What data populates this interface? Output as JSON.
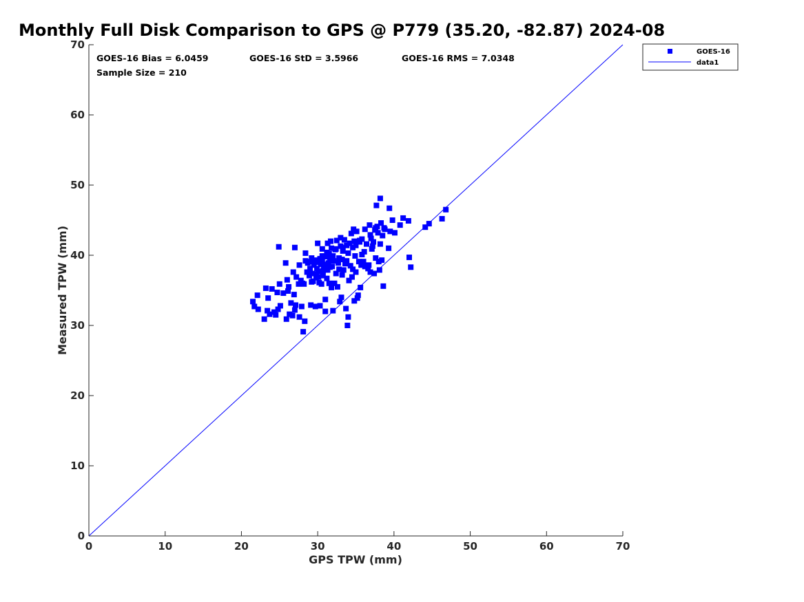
{
  "chart_data": {
    "type": "scatter",
    "title": "Monthly Full Disk Comparison to GPS @ P779 (35.20, -82.87) 2024-08",
    "xlabel": "GPS TPW (mm)",
    "ylabel": "Measured TPW (mm)",
    "xlim": [
      0,
      70
    ],
    "ylim": [
      0,
      70
    ],
    "x_ticks": [
      "0",
      "10",
      "20",
      "30",
      "40",
      "50",
      "60",
      "70"
    ],
    "y_ticks": [
      "0",
      "10",
      "20",
      "30",
      "40",
      "50",
      "60",
      "70"
    ],
    "grid": false,
    "legend_position": "top-right",
    "stats": {
      "bias": "GOES-16 Bias = 6.0459",
      "std": "GOES-16 StD = 3.5966",
      "rms": "GOES-16 RMS = 7.0348",
      "sample": "Sample Size = 210"
    },
    "series": [
      {
        "name": "GOES-16",
        "kind": "scatter",
        "marker": "square",
        "color": "#0000ff",
        "points": [
          [
            21.5,
            33.4
          ],
          [
            21.7,
            32.7
          ],
          [
            22.2,
            32.3
          ],
          [
            22.1,
            34.3
          ],
          [
            23.0,
            30.9
          ],
          [
            23.2,
            35.3
          ],
          [
            23.4,
            32.1
          ],
          [
            23.5,
            33.9
          ],
          [
            23.7,
            31.6
          ],
          [
            24.0,
            35.2
          ],
          [
            24.3,
            31.9
          ],
          [
            24.5,
            31.5
          ],
          [
            24.7,
            34.7
          ],
          [
            24.8,
            32.3
          ],
          [
            25.0,
            35.9
          ],
          [
            25.1,
            32.8
          ],
          [
            24.9,
            41.2
          ],
          [
            25.5,
            34.6
          ],
          [
            25.8,
            38.9
          ],
          [
            25.9,
            30.9
          ],
          [
            26.0,
            36.5
          ],
          [
            26.1,
            34.9
          ],
          [
            26.2,
            35.5
          ],
          [
            26.3,
            31.6
          ],
          [
            26.5,
            33.2
          ],
          [
            26.7,
            31.4
          ],
          [
            26.8,
            37.6
          ],
          [
            26.9,
            34.4
          ],
          [
            27.0,
            32.2
          ],
          [
            27.1,
            32.9
          ],
          [
            27.2,
            36.9
          ],
          [
            27.0,
            41.1
          ],
          [
            27.5,
            35.9
          ],
          [
            27.6,
            31.2
          ],
          [
            27.8,
            36.4
          ],
          [
            27.9,
            32.7
          ],
          [
            28.1,
            29.1
          ],
          [
            28.2,
            35.9
          ],
          [
            28.3,
            30.6
          ],
          [
            28.4,
            39.2
          ],
          [
            28.4,
            40.3
          ],
          [
            28.6,
            37.6
          ],
          [
            28.7,
            38.9
          ],
          [
            28.9,
            39.1
          ],
          [
            29.0,
            38.1
          ],
          [
            29.1,
            32.9
          ],
          [
            29.2,
            39.6
          ],
          [
            29.3,
            37.4
          ],
          [
            29.4,
            36.3
          ],
          [
            29.5,
            38.6
          ],
          [
            29.6,
            39.3
          ],
          [
            29.7,
            32.7
          ],
          [
            29.8,
            36.8
          ],
          [
            29.9,
            38.1
          ],
          [
            30.0,
            41.7
          ],
          [
            30.1,
            37.7
          ],
          [
            30.2,
            36.1
          ],
          [
            30.3,
            32.8
          ],
          [
            30.4,
            38.7
          ],
          [
            30.5,
            35.9
          ],
          [
            30.6,
            39.4
          ],
          [
            30.6,
            40.9
          ],
          [
            30.7,
            37.1
          ],
          [
            30.8,
            38.2
          ],
          [
            30.9,
            39.8
          ],
          [
            31.0,
            33.7
          ],
          [
            31.0,
            32.0
          ],
          [
            31.1,
            38.6
          ],
          [
            31.2,
            40.4
          ],
          [
            31.3,
            37.9
          ],
          [
            31.3,
            41.7
          ],
          [
            31.4,
            38.9
          ],
          [
            31.5,
            36.0
          ],
          [
            31.6,
            39.5
          ],
          [
            31.7,
            42.0
          ],
          [
            31.8,
            35.4
          ],
          [
            31.9,
            38.4
          ],
          [
            32.0,
            32.1
          ],
          [
            32.1,
            39.2
          ],
          [
            32.2,
            36.0
          ],
          [
            32.3,
            40.8
          ],
          [
            32.4,
            37.4
          ],
          [
            32.5,
            42.1
          ],
          [
            32.6,
            35.5
          ],
          [
            32.7,
            38.9
          ],
          [
            32.8,
            39.6
          ],
          [
            32.9,
            33.4
          ],
          [
            33.0,
            42.5
          ],
          [
            33.1,
            34.0
          ],
          [
            33.2,
            39.4
          ],
          [
            33.3,
            41.1
          ],
          [
            33.4,
            37.9
          ],
          [
            33.5,
            42.2
          ],
          [
            33.6,
            38.8
          ],
          [
            33.7,
            32.4
          ],
          [
            33.8,
            41.4
          ],
          [
            33.9,
            30.0
          ],
          [
            34.0,
            31.2
          ],
          [
            34.1,
            36.4
          ],
          [
            34.2,
            41.7
          ],
          [
            34.3,
            38.5
          ],
          [
            34.4,
            43.1
          ],
          [
            34.5,
            36.9
          ],
          [
            34.6,
            41.1
          ],
          [
            34.7,
            43.7
          ],
          [
            34.8,
            33.5
          ],
          [
            34.9,
            39.9
          ],
          [
            35.0,
            41.4
          ],
          [
            35.1,
            43.4
          ],
          [
            35.2,
            33.9
          ],
          [
            35.3,
            34.3
          ],
          [
            35.4,
            39.1
          ],
          [
            35.5,
            41.9
          ],
          [
            35.6,
            35.4
          ],
          [
            35.7,
            38.6
          ],
          [
            35.8,
            42.3
          ],
          [
            36.0,
            39.1
          ],
          [
            36.2,
            43.7
          ],
          [
            36.4,
            41.6
          ],
          [
            36.6,
            38.1
          ],
          [
            36.8,
            44.3
          ],
          [
            36.9,
            37.6
          ],
          [
            37.0,
            42.4
          ],
          [
            37.1,
            40.9
          ],
          [
            37.2,
            41.3
          ],
          [
            37.4,
            37.4
          ],
          [
            37.5,
            43.6
          ],
          [
            37.6,
            39.6
          ],
          [
            37.7,
            47.1
          ],
          [
            37.8,
            44.1
          ],
          [
            37.9,
            43.2
          ],
          [
            38.0,
            39.1
          ],
          [
            38.1,
            37.9
          ],
          [
            38.2,
            48.1
          ],
          [
            38.2,
            41.6
          ],
          [
            38.3,
            44.6
          ],
          [
            38.4,
            39.3
          ],
          [
            38.5,
            42.8
          ],
          [
            38.6,
            35.6
          ],
          [
            38.8,
            43.7
          ],
          [
            39.3,
            41.0
          ],
          [
            39.4,
            46.7
          ],
          [
            39.5,
            43.4
          ],
          [
            39.8,
            45.0
          ],
          [
            40.1,
            43.2
          ],
          [
            40.8,
            44.3
          ],
          [
            41.2,
            45.3
          ],
          [
            41.9,
            44.9
          ],
          [
            42.0,
            39.7
          ],
          [
            42.2,
            38.3
          ],
          [
            44.1,
            44.0
          ],
          [
            44.6,
            44.5
          ],
          [
            46.3,
            45.2
          ],
          [
            46.8,
            46.5
          ],
          [
            30.3,
            39.5
          ],
          [
            31.6,
            38.3
          ],
          [
            32.4,
            40.9
          ],
          [
            33.8,
            39.2
          ],
          [
            29.5,
            38.9
          ],
          [
            31.0,
            38.7
          ],
          [
            30.6,
            39.9
          ],
          [
            33.2,
            37.2
          ],
          [
            34.6,
            38.0
          ],
          [
            36.2,
            38.4
          ],
          [
            35.0,
            37.6
          ],
          [
            32.0,
            39.9
          ],
          [
            28.9,
            37.1
          ],
          [
            29.8,
            37.3
          ],
          [
            31.8,
            41.0
          ],
          [
            33.0,
            41.3
          ],
          [
            35.8,
            40.1
          ],
          [
            36.7,
            38.6
          ],
          [
            37.3,
            41.9
          ],
          [
            30.1,
            36.9
          ],
          [
            29.2,
            36.2
          ],
          [
            31.2,
            36.7
          ],
          [
            27.6,
            38.6
          ],
          [
            28.0,
            36.0
          ],
          [
            32.8,
            38.0
          ],
          [
            34.0,
            40.3
          ],
          [
            35.5,
            42.1
          ],
          [
            36.9,
            42.9
          ],
          [
            38.7,
            43.9
          ],
          [
            30.7,
            37.8
          ],
          [
            29.9,
            39.0
          ],
          [
            31.5,
            40.2
          ],
          [
            33.3,
            40.6
          ],
          [
            34.8,
            42.0
          ],
          [
            36.1,
            40.5
          ],
          [
            37.6,
            43.9
          ]
        ]
      },
      {
        "name": "data1",
        "kind": "line",
        "color": "#0000ff",
        "points": [
          [
            0,
            0
          ],
          [
            70,
            70
          ]
        ]
      }
    ]
  }
}
